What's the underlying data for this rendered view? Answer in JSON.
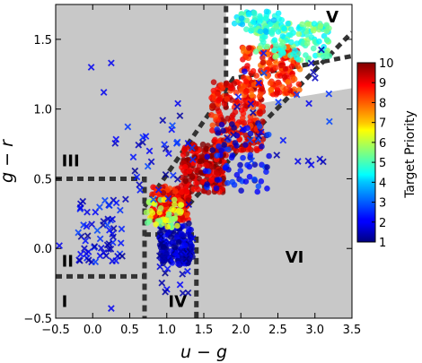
{
  "chart_data": {
    "type": "scatter",
    "xlabel": "u − g",
    "ylabel": "g − r",
    "xlim": [
      -0.5,
      3.5
    ],
    "ylim": [
      -0.5,
      1.75
    ],
    "x_ticks": [
      "−0.5",
      "0.0",
      "0.5",
      "1.0",
      "1.5",
      "2.0",
      "2.5",
      "3.0",
      "3.5"
    ],
    "y_ticks": [
      "−0.5",
      "0.0",
      "0.5",
      "1.0",
      "1.5"
    ],
    "grid": false,
    "colorbar": {
      "label": "Target Priority",
      "range": [
        1,
        10
      ],
      "ticks": [
        "1",
        "2",
        "3",
        "4",
        "5",
        "6",
        "7",
        "8",
        "9",
        "10"
      ],
      "colormap": "jet"
    },
    "colors": {
      "shaded_background": "#c8c8c8",
      "boundary_lines": "#333333"
    },
    "regions": [
      {
        "label": "I",
        "x": -0.42,
        "y": -0.42
      },
      {
        "label": "II",
        "x": -0.42,
        "y": -0.13
      },
      {
        "label": "III",
        "x": -0.42,
        "y": 0.59
      },
      {
        "label": "IV",
        "x": 1.02,
        "y": -0.42
      },
      {
        "label": "V",
        "x": 3.15,
        "y": 1.62
      },
      {
        "label": "VI",
        "x": 2.6,
        "y": -0.1
      }
    ],
    "boundaries": [
      {
        "points": [
          [
            -0.5,
            0.5
          ],
          [
            0.7,
            0.5
          ],
          [
            0.7,
            -0.5
          ]
        ]
      },
      {
        "points": [
          [
            -0.5,
            -0.2
          ],
          [
            0.7,
            -0.2
          ]
        ]
      },
      {
        "points": [
          [
            0.7,
            0.1
          ],
          [
            1.4,
            0.1
          ],
          [
            1.4,
            -0.5
          ]
        ]
      },
      {
        "points": [
          [
            0.7,
            0.3
          ],
          [
            1.9,
            1.22
          ],
          [
            3.5,
            1.38
          ]
        ]
      },
      {
        "points": [
          [
            1.1,
            0.2
          ],
          [
            2.3,
            0.9
          ],
          [
            3.5,
            1.55
          ]
        ]
      },
      {
        "points": [
          [
            1.8,
            1.0
          ],
          [
            1.8,
            1.75
          ]
        ]
      }
    ],
    "unshaded_region": [
      [
        1.8,
        1.75
      ],
      [
        3.5,
        1.75
      ],
      [
        3.5,
        1.15
      ],
      [
        1.8,
        1.0
      ]
    ],
    "series": [
      {
        "marker": "circle",
        "description_points": "dense stellar locus, priority mostly 8-10 along diagonal, 4-6 at red end, 1-3 near u-g≈1, g-r≈0"
      },
      {
        "marker": "cross",
        "description_points": "sparse low-priority outliers"
      }
    ],
    "scatter_clusters": [
      {
        "marker": "circle",
        "x": [
          0.8,
          1.3
        ],
        "y": [
          0.2,
          0.45
        ],
        "priority": 9,
        "n": 180
      },
      {
        "marker": "circle",
        "x": [
          1.2,
          1.8
        ],
        "y": [
          0.4,
          0.75
        ],
        "priority": 9.5,
        "n": 200
      },
      {
        "marker": "circle",
        "x": [
          1.6,
          2.3
        ],
        "y": [
          0.7,
          1.2
        ],
        "priority": 9,
        "n": 220
      },
      {
        "marker": "circle",
        "x": [
          2.0,
          2.8
        ],
        "y": [
          1.1,
          1.45
        ],
        "priority": 8.5,
        "n": 180
      },
      {
        "marker": "circle",
        "x": [
          2.2,
          3.2
        ],
        "y": [
          1.35,
          1.62
        ],
        "priority": 5,
        "n": 140
      },
      {
        "marker": "circle",
        "x": [
          1.9,
          2.6
        ],
        "y": [
          1.55,
          1.7
        ],
        "priority": 4.5,
        "n": 60
      },
      {
        "marker": "circle",
        "x": [
          0.9,
          1.35
        ],
        "y": [
          -0.12,
          0.18
        ],
        "priority": 1.5,
        "n": 160
      },
      {
        "marker": "circle",
        "x": [
          0.7,
          1.2
        ],
        "y": [
          0.15,
          0.35
        ],
        "priority": 6,
        "n": 50
      },
      {
        "marker": "circle",
        "x": [
          1.5,
          2.4
        ],
        "y": [
          0.4,
          0.9
        ],
        "priority": 2,
        "n": 70
      },
      {
        "marker": "cross",
        "x": [
          -0.2,
          0.4
        ],
        "y": [
          -0.1,
          0.35
        ],
        "priority": 2,
        "n": 60
      },
      {
        "marker": "cross",
        "x": [
          0.3,
          1.4
        ],
        "y": [
          0.3,
          1.0
        ],
        "priority": 2,
        "n": 35
      },
      {
        "marker": "cross",
        "x": [
          1.8,
          3.2
        ],
        "y": [
          0.6,
          1.5
        ],
        "priority": 2,
        "n": 30
      },
      {
        "marker": "cross",
        "x": [
          0.9,
          1.35
        ],
        "y": [
          -0.35,
          0.1
        ],
        "priority": 1.5,
        "n": 30
      }
    ],
    "scatter_points": [
      {
        "marker": "cross",
        "x": -0.02,
        "y": 1.3,
        "priority": 2
      },
      {
        "marker": "cross",
        "x": 0.25,
        "y": 1.33,
        "priority": 2
      },
      {
        "marker": "cross",
        "x": 0.15,
        "y": 1.12,
        "priority": 2
      },
      {
        "marker": "cross",
        "x": 0.25,
        "y": -0.43,
        "priority": 2
      },
      {
        "marker": "cross",
        "x": -0.45,
        "y": 0.02,
        "priority": 2
      },
      {
        "marker": "cross",
        "x": 1.15,
        "y": 1.04,
        "priority": 2
      },
      {
        "marker": "cross",
        "x": 2.95,
        "y": 0.6,
        "priority": 2
      },
      {
        "marker": "circle",
        "x": 2.05,
        "y": 1.27,
        "priority": 2
      }
    ]
  }
}
